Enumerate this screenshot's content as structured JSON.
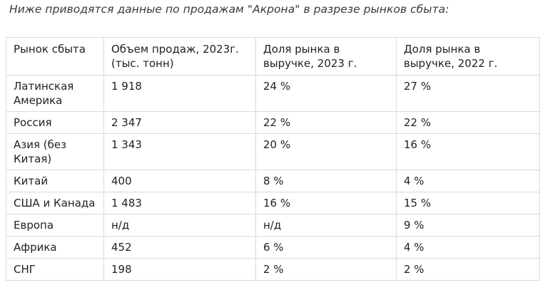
{
  "intro": "Ниже приводятся данные по продажам \"Акрона\" в разрезе рынков сбыта:",
  "table": {
    "headers": [
      "Рынок сбыта",
      "Объем продаж, 2023г. (тыс. тонн)",
      "Доля рынка в выручке, 2023 г.",
      "Доля рынка в выручке, 2022 г."
    ],
    "rows": [
      [
        "Латинская Америка",
        "1 918",
        "24 %",
        "27 %"
      ],
      [
        "Россия",
        "2 347",
        "22 %",
        "22 %"
      ],
      [
        "Азия (без Китая)",
        "1 343",
        "20 %",
        "16 %"
      ],
      [
        "Китай",
        "400",
        "8 %",
        "4 %"
      ],
      [
        "США и Канада",
        "1 483",
        "16 %",
        "15 %"
      ],
      [
        "Европа",
        "н/д",
        "н/д",
        "9 %"
      ],
      [
        "Африка",
        "452",
        "6 %",
        "4 %"
      ],
      [
        "СНГ",
        "198",
        "2 %",
        "2 %"
      ]
    ]
  }
}
